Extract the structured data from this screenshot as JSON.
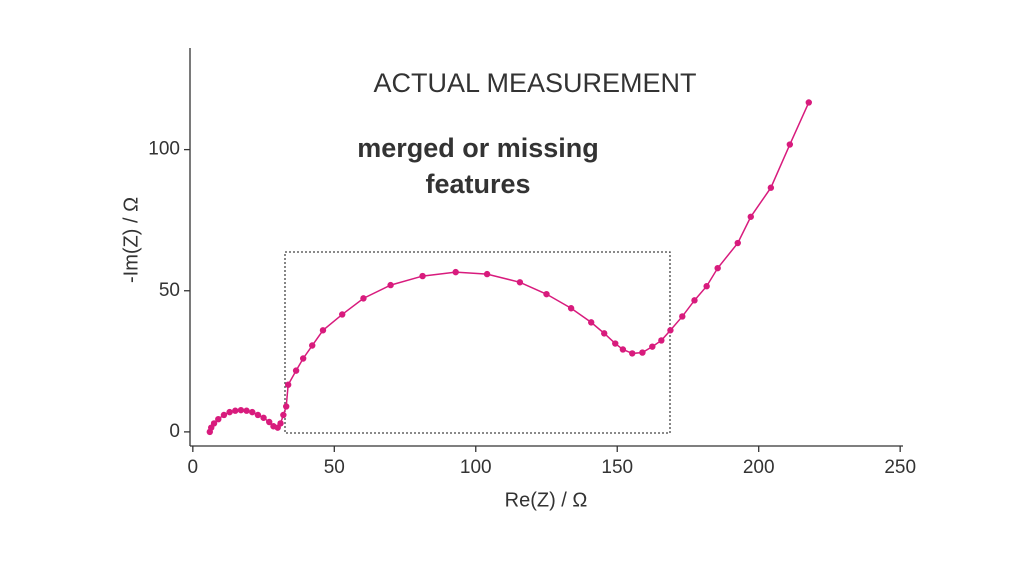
{
  "chart_data": {
    "type": "line",
    "title": "ACTUAL MEASUREMENT",
    "annotation": [
      "merged or missing",
      "features"
    ],
    "x_label": "Re(Z) / Ω",
    "y_label": "-Im(Z) / Ω",
    "color": "#d81b7d",
    "markers": true,
    "xlim": [
      -1,
      251
    ],
    "ylim": [
      -5,
      136
    ],
    "xticks": [
      0,
      50,
      100,
      150,
      200,
      250
    ],
    "yticks": [
      0,
      50,
      100
    ],
    "x": [
      6,
      6.5,
      7.5,
      9,
      11,
      13,
      15,
      17,
      19,
      21,
      23,
      25,
      27,
      28.5,
      30,
      31,
      32,
      33,
      33.7,
      36.5,
      39,
      42.2,
      46,
      52.8,
      60.3,
      69.9,
      81.2,
      92.9,
      104,
      115.6,
      125,
      133.7,
      140.8,
      145.4,
      149.3,
      152,
      155.3,
      158.9,
      162.4,
      165.6,
      168.8,
      173,
      177.3,
      181.6,
      185.5,
      192.6,
      197.2,
      204.3,
      211,
      217.7
    ],
    "series": [
      {
        "values": [
          0,
          1.5,
          3,
          4.5,
          6,
          7,
          7.5,
          7.7,
          7.5,
          7,
          6,
          5,
          3.5,
          2,
          1.5,
          3,
          6,
          9,
          16.7,
          21.7,
          26,
          30.6,
          36,
          41.6,
          47.3,
          52,
          55.2,
          56.6,
          55.9,
          53,
          48.8,
          43.8,
          38.8,
          34.9,
          31.3,
          29.2,
          27.8,
          28.1,
          30.2,
          32.4,
          36,
          40.9,
          46.6,
          51.6,
          58,
          66.9,
          76.2,
          86.5,
          101.8,
          116.7
        ]
      }
    ]
  }
}
